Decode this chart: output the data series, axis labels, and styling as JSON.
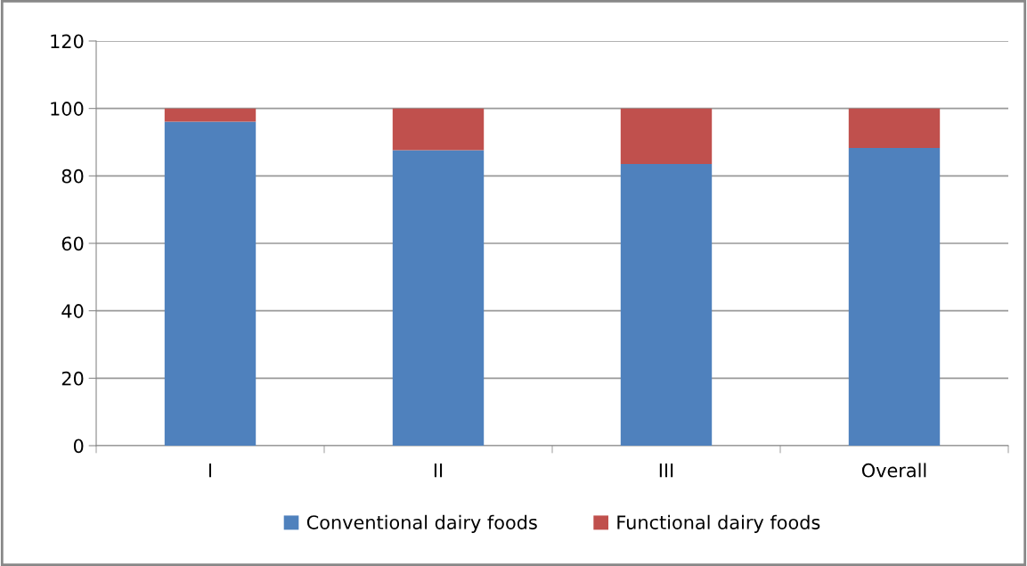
{
  "chart_data": {
    "type": "bar",
    "stacked": true,
    "categories": [
      "I",
      "II",
      "III",
      "Overall"
    ],
    "series": [
      {
        "name": "Conventional dairy foods",
        "color": "#4f81bd",
        "values": [
          96.1,
          87.6,
          83.5,
          88.3
        ]
      },
      {
        "name": "Functional dairy foods",
        "color": "#c0504d",
        "values": [
          3.9,
          12.4,
          16.5,
          11.7
        ]
      }
    ],
    "ylim": [
      0,
      120
    ],
    "yticks": [
      0,
      20,
      40,
      60,
      80,
      100,
      120
    ],
    "grid": "y",
    "legend": "bottom"
  }
}
